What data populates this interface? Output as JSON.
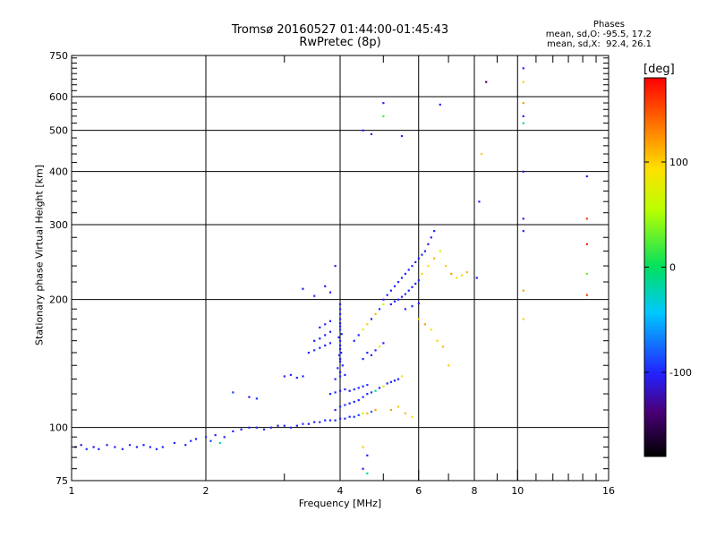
{
  "header": {
    "title_line1": "Tromsø 20160527 01:44:00-01:45:43",
    "title_line2": "RwPretec (8p)"
  },
  "phases_box": {
    "title": "Phases",
    "line1": "mean, sd,O: -95.5, 17.2",
    "line2": "mean, sd,X:  92.4, 26.1"
  },
  "colorbar": {
    "unit": "[deg]",
    "tick_labels": [
      "100",
      "0",
      "-100"
    ],
    "tick_values": [
      100,
      0,
      -100
    ],
    "range": [
      -180,
      180
    ]
  },
  "chart_data": {
    "type": "scatter",
    "title": "Tromsø 20160527 01:44:00-01:45:43",
    "subtitle": "RwPretec (8p)",
    "xlabel": "Frequency [MHz]",
    "ylabel": "Stationary phase Virtual Height [km]",
    "x_scale": "log",
    "y_scale": "log",
    "xlim": [
      1,
      16
    ],
    "ylim": [
      75,
      750
    ],
    "x_ticks": [
      1,
      2,
      4,
      6,
      8,
      10,
      16
    ],
    "x_tick_labels": [
      "1",
      "2",
      "4",
      "6",
      "8",
      "10",
      "16"
    ],
    "y_ticks": [
      75,
      100,
      200,
      300,
      400,
      500,
      600,
      750
    ],
    "y_tick_labels": [
      "75",
      "100",
      "200",
      "300",
      "400",
      "500",
      "600",
      "750"
    ],
    "grid": true,
    "color_by": "phase (deg)",
    "points": [
      [
        1.02,
        90,
        -100
      ],
      [
        1.05,
        91,
        -105
      ],
      [
        1.08,
        89,
        -95
      ],
      [
        1.12,
        90,
        -110
      ],
      [
        1.15,
        89,
        -100
      ],
      [
        1.2,
        91,
        -98
      ],
      [
        1.25,
        90,
        -102
      ],
      [
        1.3,
        89,
        -100
      ],
      [
        1.35,
        91,
        -96
      ],
      [
        1.4,
        90,
        -104
      ],
      [
        1.45,
        91,
        -100
      ],
      [
        1.5,
        90,
        -99
      ],
      [
        1.55,
        89,
        -101
      ],
      [
        1.6,
        90,
        -97
      ],
      [
        1.7,
        92,
        -100
      ],
      [
        1.8,
        91,
        -103
      ],
      [
        1.85,
        93,
        -98
      ],
      [
        1.9,
        94,
        -100
      ],
      [
        2.0,
        95,
        -95
      ],
      [
        2.05,
        93,
        -90
      ],
      [
        2.1,
        96,
        -100
      ],
      [
        2.15,
        92,
        -20
      ],
      [
        2.2,
        95,
        -100
      ],
      [
        2.3,
        98,
        -100
      ],
      [
        2.4,
        99,
        -105
      ],
      [
        2.5,
        100,
        -98
      ],
      [
        2.6,
        100,
        -102
      ],
      [
        2.7,
        99,
        -95
      ],
      [
        2.8,
        100,
        -100
      ],
      [
        2.9,
        101,
        -110
      ],
      [
        3.0,
        101,
        -100
      ],
      [
        3.1,
        100,
        -98
      ],
      [
        3.2,
        101,
        -102
      ],
      [
        3.3,
        102,
        -96
      ],
      [
        3.4,
        102,
        -104
      ],
      [
        3.5,
        103,
        -100
      ],
      [
        3.6,
        103,
        -99
      ],
      [
        3.7,
        104,
        -101
      ],
      [
        3.8,
        104,
        -97
      ],
      [
        3.9,
        104,
        -100
      ],
      [
        4.0,
        105,
        -103
      ],
      [
        4.1,
        105,
        -98
      ],
      [
        4.2,
        106,
        -100
      ],
      [
        4.3,
        106,
        -95
      ],
      [
        4.4,
        107,
        -90
      ],
      [
        4.5,
        108,
        60
      ],
      [
        4.6,
        108,
        110
      ],
      [
        4.7,
        109,
        -80
      ],
      [
        4.8,
        110,
        120
      ],
      [
        3.9,
        110,
        -100
      ],
      [
        4.0,
        112,
        -95
      ],
      [
        4.1,
        113,
        -98
      ],
      [
        4.2,
        114,
        -102
      ],
      [
        4.3,
        115,
        -100
      ],
      [
        4.4,
        116,
        -105
      ],
      [
        4.5,
        118,
        -98
      ],
      [
        4.6,
        120,
        -100
      ],
      [
        4.7,
        121,
        -95
      ],
      [
        4.8,
        122,
        -20
      ],
      [
        4.9,
        124,
        -100
      ],
      [
        5.0,
        125,
        80
      ],
      [
        5.1,
        127,
        -100
      ],
      [
        5.2,
        128,
        -98
      ],
      [
        5.3,
        129,
        -102
      ],
      [
        5.4,
        130,
        -100
      ],
      [
        5.5,
        132,
        90
      ],
      [
        3.8,
        120,
        -100
      ],
      [
        3.9,
        121,
        -98
      ],
      [
        4.0,
        122,
        -102
      ],
      [
        4.1,
        123,
        -100
      ],
      [
        4.2,
        122,
        -104
      ],
      [
        4.3,
        123,
        -96
      ],
      [
        4.4,
        124,
        -100
      ],
      [
        4.5,
        125,
        -101
      ],
      [
        4.6,
        126,
        -90
      ],
      [
        3.9,
        130,
        -100
      ],
      [
        4.0,
        132,
        -95
      ],
      [
        4.1,
        133,
        -100
      ],
      [
        4.0,
        135,
        -105
      ],
      [
        3.95,
        138,
        -100
      ],
      [
        4.05,
        140,
        -98
      ],
      [
        4.0,
        143,
        -102
      ],
      [
        4.0,
        145,
        -100
      ],
      [
        3.98,
        148,
        -96
      ],
      [
        4.02,
        150,
        -100
      ],
      [
        4.0,
        153,
        -104
      ],
      [
        4.0,
        156,
        -100
      ],
      [
        4.0,
        160,
        -98
      ],
      [
        3.97,
        163,
        -102
      ],
      [
        4.03,
        166,
        -100
      ],
      [
        4.0,
        170,
        -95
      ],
      [
        4.0,
        173,
        -100
      ],
      [
        4.0,
        176,
        -110
      ],
      [
        4.0,
        180,
        -100
      ],
      [
        4.0,
        185,
        -98
      ],
      [
        4.0,
        190,
        -102
      ],
      [
        4.0,
        195,
        -100
      ],
      [
        3.4,
        150,
        -100
      ],
      [
        3.5,
        152,
        -95
      ],
      [
        3.6,
        154,
        -100
      ],
      [
        3.7,
        156,
        -102
      ],
      [
        3.8,
        158,
        -98
      ],
      [
        3.5,
        160,
        -100
      ],
      [
        3.6,
        162,
        -104
      ],
      [
        3.7,
        165,
        -100
      ],
      [
        3.8,
        168,
        -96
      ],
      [
        3.6,
        172,
        -100
      ],
      [
        3.7,
        175,
        -98
      ],
      [
        3.8,
        178,
        -102
      ],
      [
        3.0,
        132,
        -100
      ],
      [
        3.1,
        133,
        -98
      ],
      [
        3.2,
        131,
        -102
      ],
      [
        3.3,
        132,
        -100
      ],
      [
        2.5,
        118,
        -100
      ],
      [
        2.6,
        117,
        -95
      ],
      [
        2.3,
        121,
        -90
      ],
      [
        3.3,
        212,
        -100
      ],
      [
        3.5,
        204,
        -95
      ],
      [
        3.7,
        215,
        -105
      ],
      [
        3.8,
        208,
        -100
      ],
      [
        3.9,
        240,
        -100
      ],
      [
        4.3,
        160,
        -100
      ],
      [
        4.4,
        165,
        -98
      ],
      [
        4.5,
        170,
        80
      ],
      [
        4.6,
        175,
        100
      ],
      [
        4.7,
        180,
        -100
      ],
      [
        4.8,
        185,
        110
      ],
      [
        4.9,
        190,
        -95
      ],
      [
        5.0,
        195,
        60
      ],
      [
        4.5,
        145,
        -100
      ],
      [
        4.6,
        150,
        -98
      ],
      [
        4.7,
        148,
        -102
      ],
      [
        4.8,
        152,
        -100
      ],
      [
        4.9,
        155,
        70
      ],
      [
        5.0,
        158,
        -100
      ],
      [
        5.0,
        200,
        -100
      ],
      [
        5.1,
        205,
        -98
      ],
      [
        5.2,
        210,
        -102
      ],
      [
        5.3,
        215,
        -100
      ],
      [
        5.4,
        220,
        -96
      ],
      [
        5.5,
        225,
        -100
      ],
      [
        5.6,
        230,
        -104
      ],
      [
        5.7,
        235,
        -100
      ],
      [
        5.8,
        240,
        -98
      ],
      [
        5.9,
        245,
        -102
      ],
      [
        6.0,
        250,
        -100
      ],
      [
        6.1,
        255,
        -95
      ],
      [
        6.2,
        260,
        -100
      ],
      [
        6.3,
        270,
        -100
      ],
      [
        6.4,
        280,
        -98
      ],
      [
        6.5,
        290,
        -100
      ],
      [
        5.2,
        195,
        -100
      ],
      [
        5.3,
        198,
        -98
      ],
      [
        5.4,
        200,
        -102
      ],
      [
        5.5,
        203,
        -100
      ],
      [
        5.6,
        206,
        -96
      ],
      [
        5.7,
        210,
        -100
      ],
      [
        5.8,
        214,
        -104
      ],
      [
        5.9,
        218,
        -100
      ],
      [
        6.0,
        222,
        -98
      ],
      [
        5.6,
        190,
        -100
      ],
      [
        5.8,
        193,
        -95
      ],
      [
        6.0,
        196,
        -100
      ],
      [
        6.1,
        230,
        100
      ],
      [
        6.3,
        240,
        90
      ],
      [
        6.5,
        250,
        110
      ],
      [
        6.7,
        260,
        80
      ],
      [
        6.9,
        240,
        100
      ],
      [
        7.1,
        230,
        120
      ],
      [
        7.3,
        225,
        90
      ],
      [
        7.5,
        228,
        100
      ],
      [
        7.7,
        232,
        110
      ],
      [
        6.0,
        180,
        100
      ],
      [
        6.2,
        175,
        120
      ],
      [
        6.4,
        170,
        90
      ],
      [
        6.6,
        160,
        100
      ],
      [
        6.8,
        155,
        110
      ],
      [
        7.0,
        140,
        100
      ],
      [
        5.2,
        110,
        120
      ],
      [
        5.4,
        112,
        100
      ],
      [
        5.6,
        108,
        110
      ],
      [
        5.8,
        106,
        90
      ],
      [
        4.5,
        500,
        -100
      ],
      [
        4.7,
        490,
        -105
      ],
      [
        5.0,
        540,
        20
      ],
      [
        5.0,
        580,
        -100
      ],
      [
        5.5,
        485,
        -100
      ],
      [
        6.7,
        575,
        -100
      ],
      [
        8.1,
        225,
        -100
      ],
      [
        8.2,
        340,
        -100
      ],
      [
        8.3,
        440,
        100
      ],
      [
        8.5,
        650,
        -140
      ],
      [
        10.3,
        700,
        -100
      ],
      [
        10.3,
        650,
        100
      ],
      [
        10.3,
        580,
        120
      ],
      [
        10.3,
        540,
        -100
      ],
      [
        10.3,
        520,
        -20
      ],
      [
        10.3,
        400,
        -100
      ],
      [
        10.3,
        310,
        -100
      ],
      [
        10.3,
        290,
        -100
      ],
      [
        10.3,
        210,
        120
      ],
      [
        10.3,
        180,
        100
      ],
      [
        14.3,
        390,
        -100
      ],
      [
        14.3,
        310,
        160
      ],
      [
        14.3,
        270,
        170
      ],
      [
        14.3,
        230,
        30
      ],
      [
        14.3,
        205,
        160
      ],
      [
        4.5,
        80,
        -100
      ],
      [
        4.6,
        78,
        -20
      ],
      [
        4.5,
        90,
        100
      ],
      [
        4.6,
        86,
        -100
      ]
    ]
  }
}
